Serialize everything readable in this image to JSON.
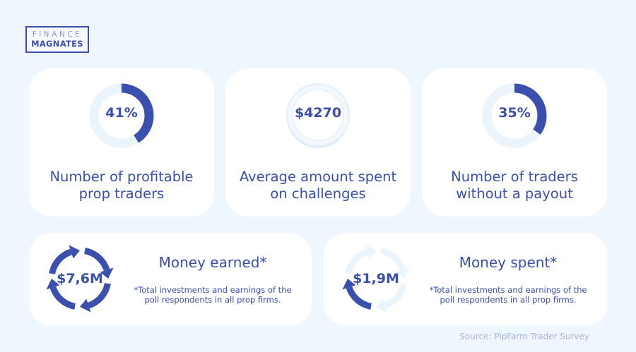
{
  "brand": {
    "line1": "FINANCE",
    "line2": "MAGNATES"
  },
  "colors": {
    "accent": "#3a4fae",
    "track": "#eaf4fd",
    "background": "#eef6fe"
  },
  "stats": [
    {
      "value": "41%",
      "percent": 41,
      "title_line1": "Number of profitable",
      "title_line2": "prop traders"
    },
    {
      "value": "$4270",
      "title_line1": "Average amount spent",
      "title_line2": "on challenges"
    },
    {
      "value": "35%",
      "percent": 35,
      "title_line1": "Number of traders",
      "title_line2": "without a payout"
    }
  ],
  "money": [
    {
      "value": "$7,6M",
      "title": "Money earned*",
      "note_line1": "*Total investments and earnings of the",
      "note_line2": "poll respondents in all prop firms.",
      "icon": "cycle-arrows-icon",
      "highlighted_arrows": 4
    },
    {
      "value": "$1,9M",
      "title": "Money spent*",
      "note_line1": "*Total investments and earnings of the",
      "note_line2": "poll respondents in all prop firms.",
      "icon": "cycle-arrows-icon",
      "highlighted_arrows": 1
    }
  ],
  "source": "Source: PipFarm Trader Survey"
}
